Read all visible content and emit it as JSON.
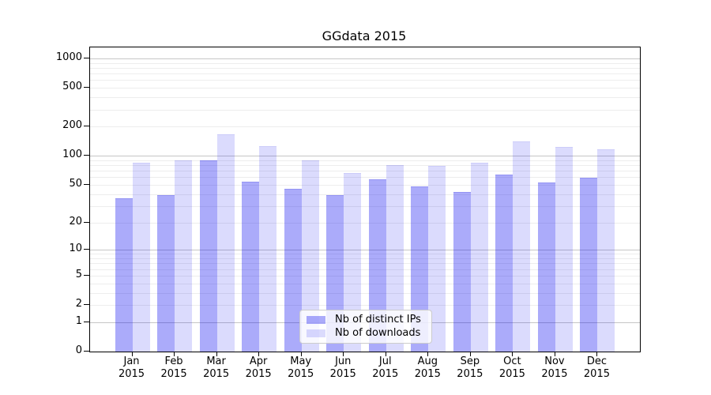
{
  "chart_data": {
    "type": "bar",
    "title": "GGdata 2015",
    "categories": [
      "Jan",
      "Feb",
      "Mar",
      "Apr",
      "May",
      "Jun",
      "Jul",
      "Aug",
      "Sep",
      "Oct",
      "Nov",
      "Dec"
    ],
    "year_label": "2015",
    "series": [
      {
        "name": "Nb of distinct IPs",
        "key": "distinct-ips",
        "color": "rgba(0,0,240,0.33)",
        "edge_color": "rgba(40,40,210,0.18)",
        "values": [
          36,
          39,
          90,
          54,
          45,
          39,
          57,
          48,
          42,
          64,
          53,
          59
        ]
      },
      {
        "name": "Nb of downloads",
        "key": "downloads",
        "color": "rgba(0,0,240,0.14)",
        "edge_color": "rgba(40,40,210,0.08)",
        "values": [
          84,
          90,
          167,
          125,
          90,
          66,
          80,
          78,
          84,
          140,
          123,
          117
        ]
      }
    ],
    "xlabel": "",
    "ylabel": "",
    "ylim": [
      0,
      1000
    ],
    "yscale": "log1p",
    "yticks": [
      0,
      1,
      2,
      5,
      10,
      20,
      50,
      100,
      200,
      500,
      1000
    ],
    "major_gridlines": [
      1,
      10,
      100,
      1000
    ],
    "minor_gridlines": [
      2,
      3,
      4,
      5,
      6,
      7,
      8,
      9,
      20,
      30,
      40,
      50,
      60,
      70,
      80,
      90,
      200,
      300,
      400,
      500,
      600,
      700,
      800,
      900
    ],
    "grid": true,
    "legend_position": "lower center"
  },
  "colors": {
    "background": "#ffffff",
    "spine": "#000000",
    "major_grid": "#c6c6c6",
    "minor_grid": "#ededed",
    "legend_border": "#cccccc",
    "legend_background": "rgba(255,255,255,0.8)",
    "text": "#000000"
  }
}
